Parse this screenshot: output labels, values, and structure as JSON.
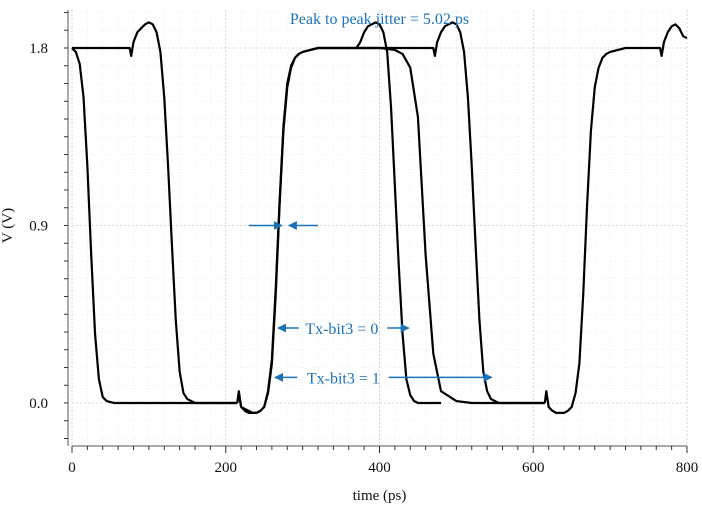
{
  "chart_data": {
    "type": "line",
    "title": "",
    "xlabel": "time (ps)",
    "ylabel": "V (V)",
    "xlim": [
      0,
      800
    ],
    "ylim": [
      -0.2,
      2.0
    ],
    "x_ticks": [
      0,
      200,
      400,
      600,
      800
    ],
    "y_ticks": [
      0.0,
      0.9,
      1.8
    ],
    "x_tick_labels": [
      "0",
      "200",
      "400",
      "600",
      "800"
    ],
    "y_tick_labels": [
      "0.0",
      "0.9",
      "1.8"
    ],
    "grid": true,
    "legend": "none",
    "series": [
      {
        "x": [
          0,
          5,
          10,
          15,
          20,
          25,
          30,
          35,
          40,
          45,
          50,
          55,
          60,
          70,
          80,
          100,
          120,
          140,
          160,
          180,
          200,
          215
        ],
        "y": [
          1.8,
          1.78,
          1.72,
          1.55,
          1.2,
          0.75,
          0.35,
          0.12,
          0.03,
          0.01,
          0.005,
          0.0,
          0.0,
          0.0,
          0.0,
          0.0,
          0.0,
          0.0,
          0.0,
          0.0,
          0.0,
          0.0
        ]
      },
      {
        "x": [
          0,
          40,
          60,
          70,
          75,
          77,
          80,
          85,
          90,
          95,
          100,
          105,
          110,
          115,
          120,
          125,
          130,
          135,
          140,
          145,
          150,
          155,
          160,
          170,
          180,
          200,
          215
        ],
        "y": [
          1.8,
          1.8,
          1.8,
          1.8,
          1.8,
          1.76,
          1.83,
          1.88,
          1.9,
          1.92,
          1.93,
          1.92,
          1.88,
          1.78,
          1.55,
          1.2,
          0.8,
          0.42,
          0.16,
          0.05,
          0.02,
          0.01,
          0.0,
          0.0,
          0.0,
          0.0,
          0.0
        ]
      },
      {
        "x": [
          215,
          217,
          220,
          225,
          230,
          235,
          240,
          245,
          250,
          255,
          260,
          265,
          270,
          275,
          280,
          285,
          290,
          295,
          300,
          310,
          320,
          340,
          360,
          380,
          400,
          420,
          430,
          440,
          450,
          455,
          460,
          470,
          480,
          500,
          520,
          540,
          560,
          580,
          600,
          615
        ],
        "y": [
          0.0,
          0.05,
          -0.02,
          -0.03,
          -0.04,
          -0.05,
          -0.05,
          -0.04,
          -0.02,
          0.05,
          0.2,
          0.55,
          1.0,
          1.38,
          1.6,
          1.7,
          1.75,
          1.77,
          1.78,
          1.79,
          1.8,
          1.8,
          1.8,
          1.8,
          1.8,
          1.79,
          1.77,
          1.7,
          1.45,
          1.1,
          0.75,
          0.25,
          0.06,
          0.01,
          0.0,
          0.0,
          0.0,
          0.0,
          0.0,
          0.0
        ]
      },
      {
        "x": [
          215,
          217,
          220,
          225,
          230,
          235,
          240,
          245,
          250,
          255,
          260,
          265,
          270,
          275,
          280,
          285,
          290,
          295,
          300,
          320,
          340,
          360,
          370,
          375,
          380,
          385,
          390,
          395,
          400,
          405,
          410,
          415,
          420,
          425,
          430,
          435,
          440,
          445,
          450,
          460,
          470,
          480
        ],
        "y": [
          0.0,
          0.06,
          -0.02,
          -0.04,
          -0.05,
          -0.05,
          -0.05,
          -0.04,
          -0.02,
          0.06,
          0.22,
          0.58,
          1.02,
          1.4,
          1.62,
          1.71,
          1.75,
          1.77,
          1.78,
          1.8,
          1.8,
          1.8,
          1.8,
          1.83,
          1.88,
          1.91,
          1.92,
          1.93,
          1.92,
          1.88,
          1.78,
          1.5,
          1.1,
          0.7,
          0.35,
          0.12,
          0.04,
          0.01,
          0.0,
          0.0,
          0.0,
          0.0
        ]
      },
      {
        "x": [
          370,
          400,
          420,
          440,
          460,
          465,
          470,
          472,
          475,
          480,
          485,
          490,
          495,
          500,
          505,
          510,
          515,
          520,
          525,
          530,
          535,
          540,
          545,
          550,
          555,
          560,
          570,
          580,
          600,
          615
        ],
        "y": [
          1.8,
          1.8,
          1.8,
          1.8,
          1.8,
          1.8,
          1.8,
          1.76,
          1.83,
          1.88,
          1.91,
          1.92,
          1.93,
          1.92,
          1.88,
          1.78,
          1.55,
          1.2,
          0.8,
          0.42,
          0.16,
          0.06,
          0.02,
          0.01,
          0.0,
          0.0,
          0.0,
          0.0,
          0.0,
          0.0
        ]
      },
      {
        "x": [
          615,
          617,
          620,
          625,
          630,
          635,
          640,
          645,
          650,
          655,
          660,
          665,
          670,
          675,
          680,
          685,
          690,
          695,
          700,
          720,
          740,
          760,
          765,
          767,
          770,
          775,
          780,
          785,
          790,
          795,
          800
        ],
        "y": [
          0.0,
          0.06,
          -0.02,
          -0.04,
          -0.05,
          -0.05,
          -0.05,
          -0.04,
          -0.02,
          0.05,
          0.2,
          0.55,
          1.0,
          1.38,
          1.6,
          1.7,
          1.75,
          1.77,
          1.78,
          1.8,
          1.8,
          1.8,
          1.8,
          1.76,
          1.83,
          1.88,
          1.91,
          1.92,
          1.9,
          1.86,
          1.85
        ]
      }
    ],
    "annotations": {
      "jitter_label": "Peak to peak jitter = 5.02 ps",
      "bit0_label": "Tx-bit3 = 0",
      "bit1_label": "Tx-bit3 = 1",
      "color": "#1a73b8"
    }
  }
}
